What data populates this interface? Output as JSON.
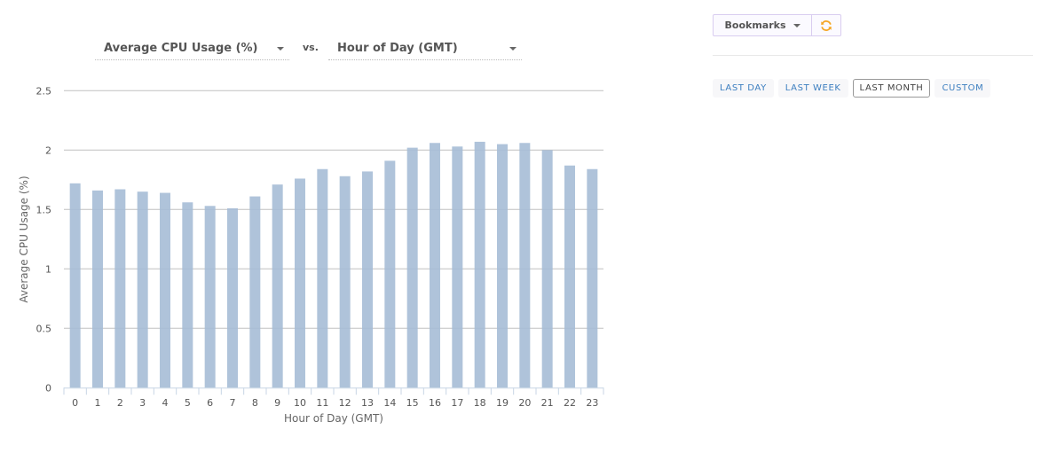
{
  "controls": {
    "y_metric": "Average CPU Usage (%)",
    "vs_label": "vs.",
    "x_metric": "Hour of Day (GMT)"
  },
  "toolbar": {
    "bookmarks_label": "Bookmarks",
    "refresh_icon": "refresh-icon",
    "refresh_color": "#f5a623"
  },
  "time_range": {
    "options": [
      {
        "label": "LAST DAY",
        "active": false
      },
      {
        "label": "LAST WEEK",
        "active": false
      },
      {
        "label": "LAST MONTH",
        "active": true
      },
      {
        "label": "CUSTOM",
        "active": false
      }
    ]
  },
  "chart_data": {
    "type": "bar",
    "title": "",
    "xlabel": "Hour of Day (GMT)",
    "ylabel": "Average CPU Usage (%)",
    "categories": [
      "0",
      "1",
      "2",
      "3",
      "4",
      "5",
      "6",
      "7",
      "8",
      "9",
      "10",
      "11",
      "12",
      "13",
      "14",
      "15",
      "16",
      "17",
      "18",
      "19",
      "20",
      "21",
      "22",
      "23"
    ],
    "values": [
      1.72,
      1.66,
      1.67,
      1.65,
      1.64,
      1.56,
      1.53,
      1.51,
      1.61,
      1.71,
      1.76,
      1.84,
      1.78,
      1.82,
      1.91,
      2.02,
      2.06,
      2.03,
      2.07,
      2.05,
      2.06,
      2.0,
      1.87,
      1.84
    ],
    "ylim": [
      0,
      2.5
    ],
    "yticks": [
      0,
      0.5,
      1,
      1.5,
      2,
      2.5
    ],
    "ytick_labels": [
      "0",
      "0.5",
      "1",
      "1.5",
      "2",
      "2.5"
    ],
    "grid": true,
    "legend": null,
    "bar_color": "#a6bcd6"
  }
}
